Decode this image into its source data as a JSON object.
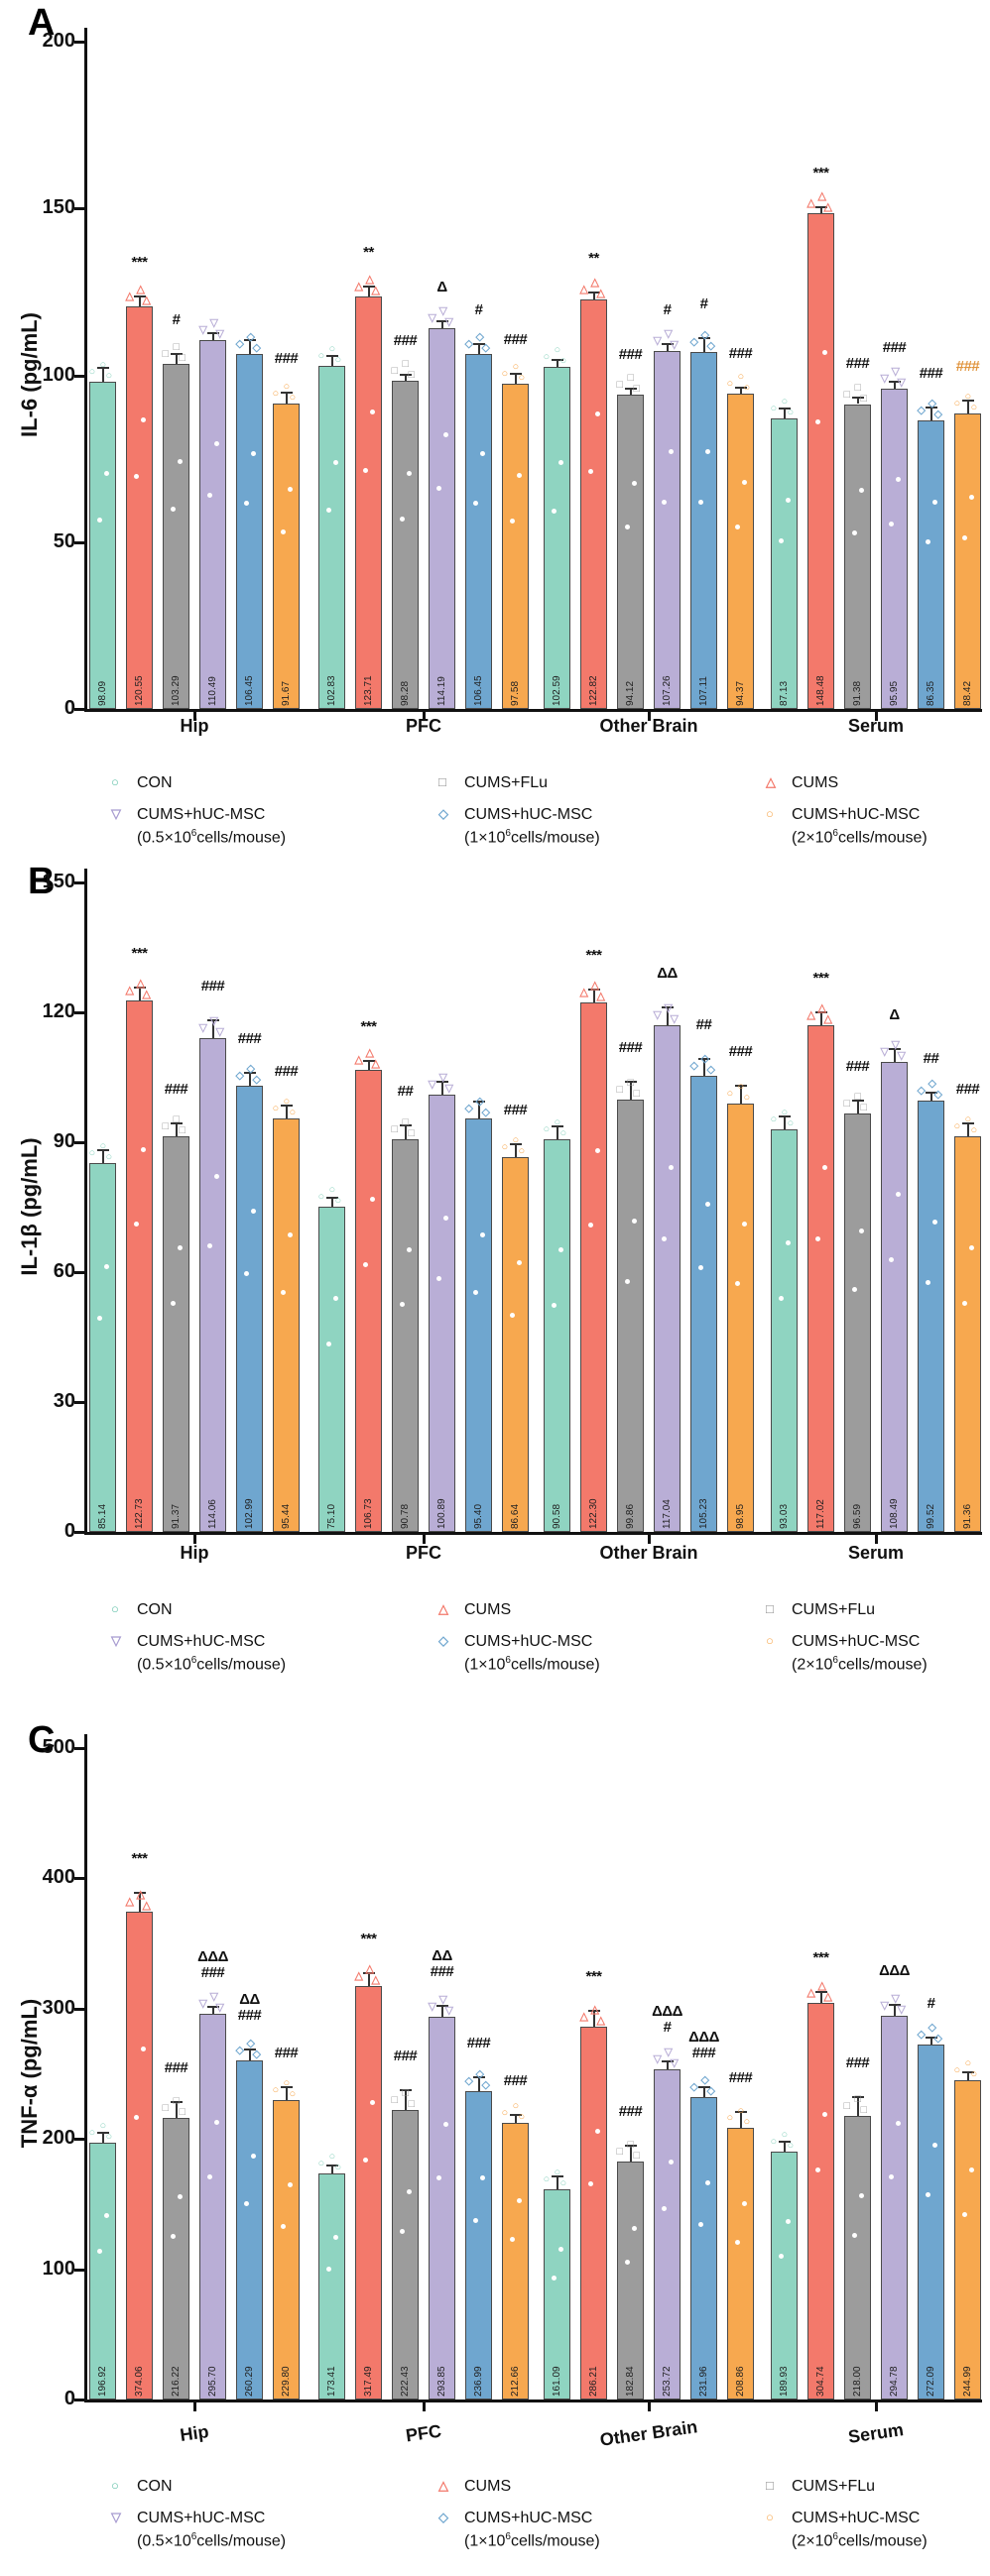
{
  "figure_background": "#ffffff",
  "chart_data": [
    {
      "type": "bar",
      "panel_label": "A",
      "title": "",
      "xlabel": "",
      "ylabel": "IL-6 (pg/mL)",
      "ylim": [
        0,
        200
      ],
      "yticks": [
        0,
        50,
        100,
        150,
        200
      ],
      "grid": "off",
      "legend_position": "bottom",
      "categories": [
        "Hip",
        "PFC",
        "Other Brain",
        "Serum"
      ],
      "series": [
        {
          "name": "CON",
          "color": "#8fd4c1",
          "marker": "○",
          "values": [
            98.09,
            102.83,
            102.59,
            87.13
          ],
          "errors": [
            4,
            3,
            2,
            3
          ],
          "sig": [
            "",
            "",
            "",
            ""
          ]
        },
        {
          "name": "CUMS",
          "color": "#f3796b",
          "marker": "△",
          "values": [
            120.55,
            123.71,
            122.82,
            148.48
          ],
          "errors": [
            3,
            3,
            2,
            2
          ],
          "sig": [
            "***",
            "**",
            "**",
            "***"
          ]
        },
        {
          "name": "CUMS+FLu",
          "color": "#9c9c9c",
          "marker": "□",
          "values": [
            103.29,
            98.28,
            94.12,
            91.38
          ],
          "errors": [
            3,
            2,
            2,
            2
          ],
          "sig": [
            "#",
            "###",
            "###",
            "###"
          ]
        },
        {
          "name": "CUMS+hUC-MSC (0.5×10^6cells/mouse)",
          "color": "#b9aed6",
          "marker": "▽",
          "values": [
            110.49,
            114.19,
            107.26,
            95.95
          ],
          "errors": [
            2,
            2,
            2,
            2
          ],
          "sig": [
            "",
            "Δ",
            "#",
            "###"
          ]
        },
        {
          "name": "CUMS+hUC-MSC (1×10^6cells/mouse)",
          "color": "#6fa6cf",
          "marker": "◇",
          "values": [
            106.45,
            106.45,
            107.11,
            86.35
          ],
          "errors": [
            4,
            3,
            4,
            4
          ],
          "sig": [
            "",
            "#",
            "#",
            "###"
          ]
        },
        {
          "name": "CUMS+hUC-MSC (2×10^6cells/mouse)",
          "color": "#f7a84f",
          "marker": "○",
          "values": [
            91.67,
            97.58,
            94.37,
            88.42
          ],
          "errors": [
            3,
            3,
            2,
            4
          ],
          "sig": [
            "###",
            "###",
            "###",
            "###"
          ],
          "sig_colors": [
            null,
            null,
            null,
            "#e0953f"
          ]
        }
      ],
      "legend": {
        "row1": [
          {
            "marker": "○",
            "color": "#5bbfa5",
            "lines": [
              "CON"
            ]
          },
          {
            "marker": "□",
            "color": "#8a8a8a",
            "lines": [
              "CUMS+FLu"
            ]
          },
          {
            "marker": "△",
            "color": "#f3796b",
            "lines": [
              "CUMS"
            ]
          }
        ],
        "row2": [
          {
            "marker": "▽",
            "color": "#a79bd0",
            "lines": [
              "CUMS+hUC-MSC",
              "(0.5×10^6cells/mouse)"
            ]
          },
          {
            "marker": "◇",
            "color": "#6fa6cf",
            "lines": [
              "CUMS+hUC-MSC",
              "(1×10^6cells/mouse)"
            ]
          },
          {
            "marker": "○",
            "color": "#f7a84f",
            "lines": [
              "CUMS+hUC-MSC",
              "(2×10^6cells/mouse)"
            ]
          }
        ]
      }
    },
    {
      "type": "bar",
      "panel_label": "B",
      "title": "",
      "xlabel": "",
      "ylabel": "IL-1β (pg/mL)",
      "ylim": [
        0,
        150
      ],
      "yticks": [
        0,
        30,
        60,
        90,
        120,
        150
      ],
      "grid": "off",
      "legend_position": "bottom",
      "categories": [
        "Hip",
        "PFC",
        "Other Brain",
        "Serum"
      ],
      "series": [
        {
          "name": "CON",
          "color": "#8fd4c1",
          "marker": "○",
          "values": [
            85.14,
            75.1,
            90.58,
            93.03
          ],
          "errors": [
            3,
            2,
            3,
            3
          ],
          "sig": [
            "",
            "",
            "",
            ""
          ]
        },
        {
          "name": "CUMS",
          "color": "#f3796b",
          "marker": "△",
          "values": [
            122.73,
            106.73,
            122.3,
            117.02
          ],
          "errors": [
            3,
            2,
            3,
            3
          ],
          "sig": [
            "***",
            "***",
            "***",
            "***"
          ]
        },
        {
          "name": "CUMS+FLu",
          "color": "#9c9c9c",
          "marker": "□",
          "values": [
            91.37,
            90.78,
            99.86,
            96.59
          ],
          "errors": [
            3,
            3,
            4,
            3
          ],
          "sig": [
            "###",
            "##",
            "###",
            "###"
          ]
        },
        {
          "name": "CUMS+hUC-MSC (0.5×10^6cells/mouse)",
          "color": "#b9aed6",
          "marker": "▽",
          "values": [
            114.06,
            100.89,
            117.04,
            108.49
          ],
          "errors": [
            4,
            3,
            4,
            3
          ],
          "sig": [
            "###",
            "",
            "ΔΔ",
            "Δ"
          ]
        },
        {
          "name": "CUMS+hUC-MSC (1×10^6cells/mouse)",
          "color": "#6fa6cf",
          "marker": "◇",
          "values": [
            102.99,
            95.4,
            105.23,
            99.52
          ],
          "errors": [
            3,
            4,
            4,
            2
          ],
          "sig": [
            "###",
            "",
            "##",
            "##"
          ]
        },
        {
          "name": "CUMS+hUC-MSC (2×10^6cells/mouse)",
          "color": "#f7a84f",
          "marker": "○",
          "values": [
            95.44,
            86.64,
            98.95,
            91.36
          ],
          "errors": [
            3,
            3,
            4,
            3
          ],
          "sig": [
            "###",
            "###",
            "###",
            "###"
          ]
        }
      ],
      "legend": {
        "row1": [
          {
            "marker": "○",
            "color": "#5bbfa5",
            "lines": [
              "CON"
            ]
          },
          {
            "marker": "△",
            "color": "#f3796b",
            "lines": [
              "CUMS"
            ]
          },
          {
            "marker": "□",
            "color": "#8a8a8a",
            "lines": [
              "CUMS+FLu"
            ]
          }
        ],
        "row2": [
          {
            "marker": "▽",
            "color": "#a79bd0",
            "lines": [
              "CUMS+hUC-MSC",
              "(0.5×10^6cells/mouse)"
            ]
          },
          {
            "marker": "◇",
            "color": "#6fa6cf",
            "lines": [
              "CUMS+hUC-MSC",
              "(1×10^6cells/mouse)"
            ]
          },
          {
            "marker": "○",
            "color": "#f7a84f",
            "lines": [
              "CUMS+hUC-MSC",
              "(2×10^6cells/mouse)"
            ]
          }
        ]
      }
    },
    {
      "type": "bar",
      "panel_label": "C",
      "title": "",
      "xlabel": "",
      "ylabel": "TNF-α (pg/mL)",
      "ylim": [
        0,
        500
      ],
      "yticks": [
        0,
        100,
        200,
        300,
        400,
        500
      ],
      "grid": "off",
      "legend_position": "bottom",
      "categories": [
        "Hip",
        "PFC",
        "Other Brain",
        "Serum"
      ],
      "series": [
        {
          "name": "CON",
          "color": "#8fd4c1",
          "marker": "○",
          "values": [
            196.92,
            173.41,
            161.09,
            189.93
          ],
          "errors": [
            8,
            6,
            10,
            8
          ],
          "sig": [
            "",
            "",
            "",
            ""
          ]
        },
        {
          "name": "CUMS",
          "color": "#f3796b",
          "marker": "△",
          "values": [
            374.06,
            317.49,
            286.21,
            304.74
          ],
          "errors": [
            15,
            10,
            12,
            8
          ],
          "sig": [
            "***",
            "***",
            "***",
            "***"
          ]
        },
        {
          "name": "CUMS+FLu",
          "color": "#9c9c9c",
          "marker": "□",
          "values": [
            216.22,
            222.43,
            182.84,
            218.0
          ],
          "errors": [
            12,
            15,
            12,
            14
          ],
          "sig": [
            "###",
            "###",
            "###",
            "###"
          ]
        },
        {
          "name": "CUMS+hUC-MSC (0.5×10^6cells/mouse)",
          "color": "#b9aed6",
          "marker": "▽",
          "values": [
            295.7,
            293.85,
            253.72,
            294.78
          ],
          "errors": [
            6,
            8,
            6,
            8
          ],
          "sig": [
            "ΔΔΔ\n###",
            "ΔΔ\n###",
            "ΔΔΔ\n#",
            "ΔΔΔ"
          ]
        },
        {
          "name": "CUMS+hUC-MSC (1×10^6cells/mouse)",
          "color": "#6fa6cf",
          "marker": "◇",
          "values": [
            260.29,
            236.99,
            231.96,
            272.09
          ],
          "errors": [
            8,
            10,
            8,
            6
          ],
          "sig": [
            "ΔΔ\n###",
            "###",
            "ΔΔΔ\n###",
            "#"
          ]
        },
        {
          "name": "CUMS+hUC-MSC (2×10^6cells/mouse)",
          "color": "#f7a84f",
          "marker": "○",
          "values": [
            229.8,
            212.66,
            208.86,
            244.99
          ],
          "errors": [
            10,
            6,
            12,
            6
          ],
          "sig": [
            "###",
            "###",
            "###",
            ""
          ]
        }
      ],
      "legend": {
        "row1": [
          {
            "marker": "○",
            "color": "#5bbfa5",
            "lines": [
              "CON"
            ]
          },
          {
            "marker": "△",
            "color": "#f3796b",
            "lines": [
              "CUMS"
            ]
          },
          {
            "marker": "□",
            "color": "#8a8a8a",
            "lines": [
              "CUMS+FLu"
            ]
          }
        ],
        "row2": [
          {
            "marker": "▽",
            "color": "#a79bd0",
            "lines": [
              "CUMS+hUC-MSC",
              "(0.5×10^6cells/mouse)"
            ]
          },
          {
            "marker": "◇",
            "color": "#6fa6cf",
            "lines": [
              "CUMS+hUC-MSC",
              "(1×10^6cells/mouse)"
            ]
          },
          {
            "marker": "○",
            "color": "#f7a84f",
            "lines": [
              "CUMS+hUC-MSC",
              "(2×10^6cells/mouse)"
            ]
          }
        ]
      }
    }
  ]
}
